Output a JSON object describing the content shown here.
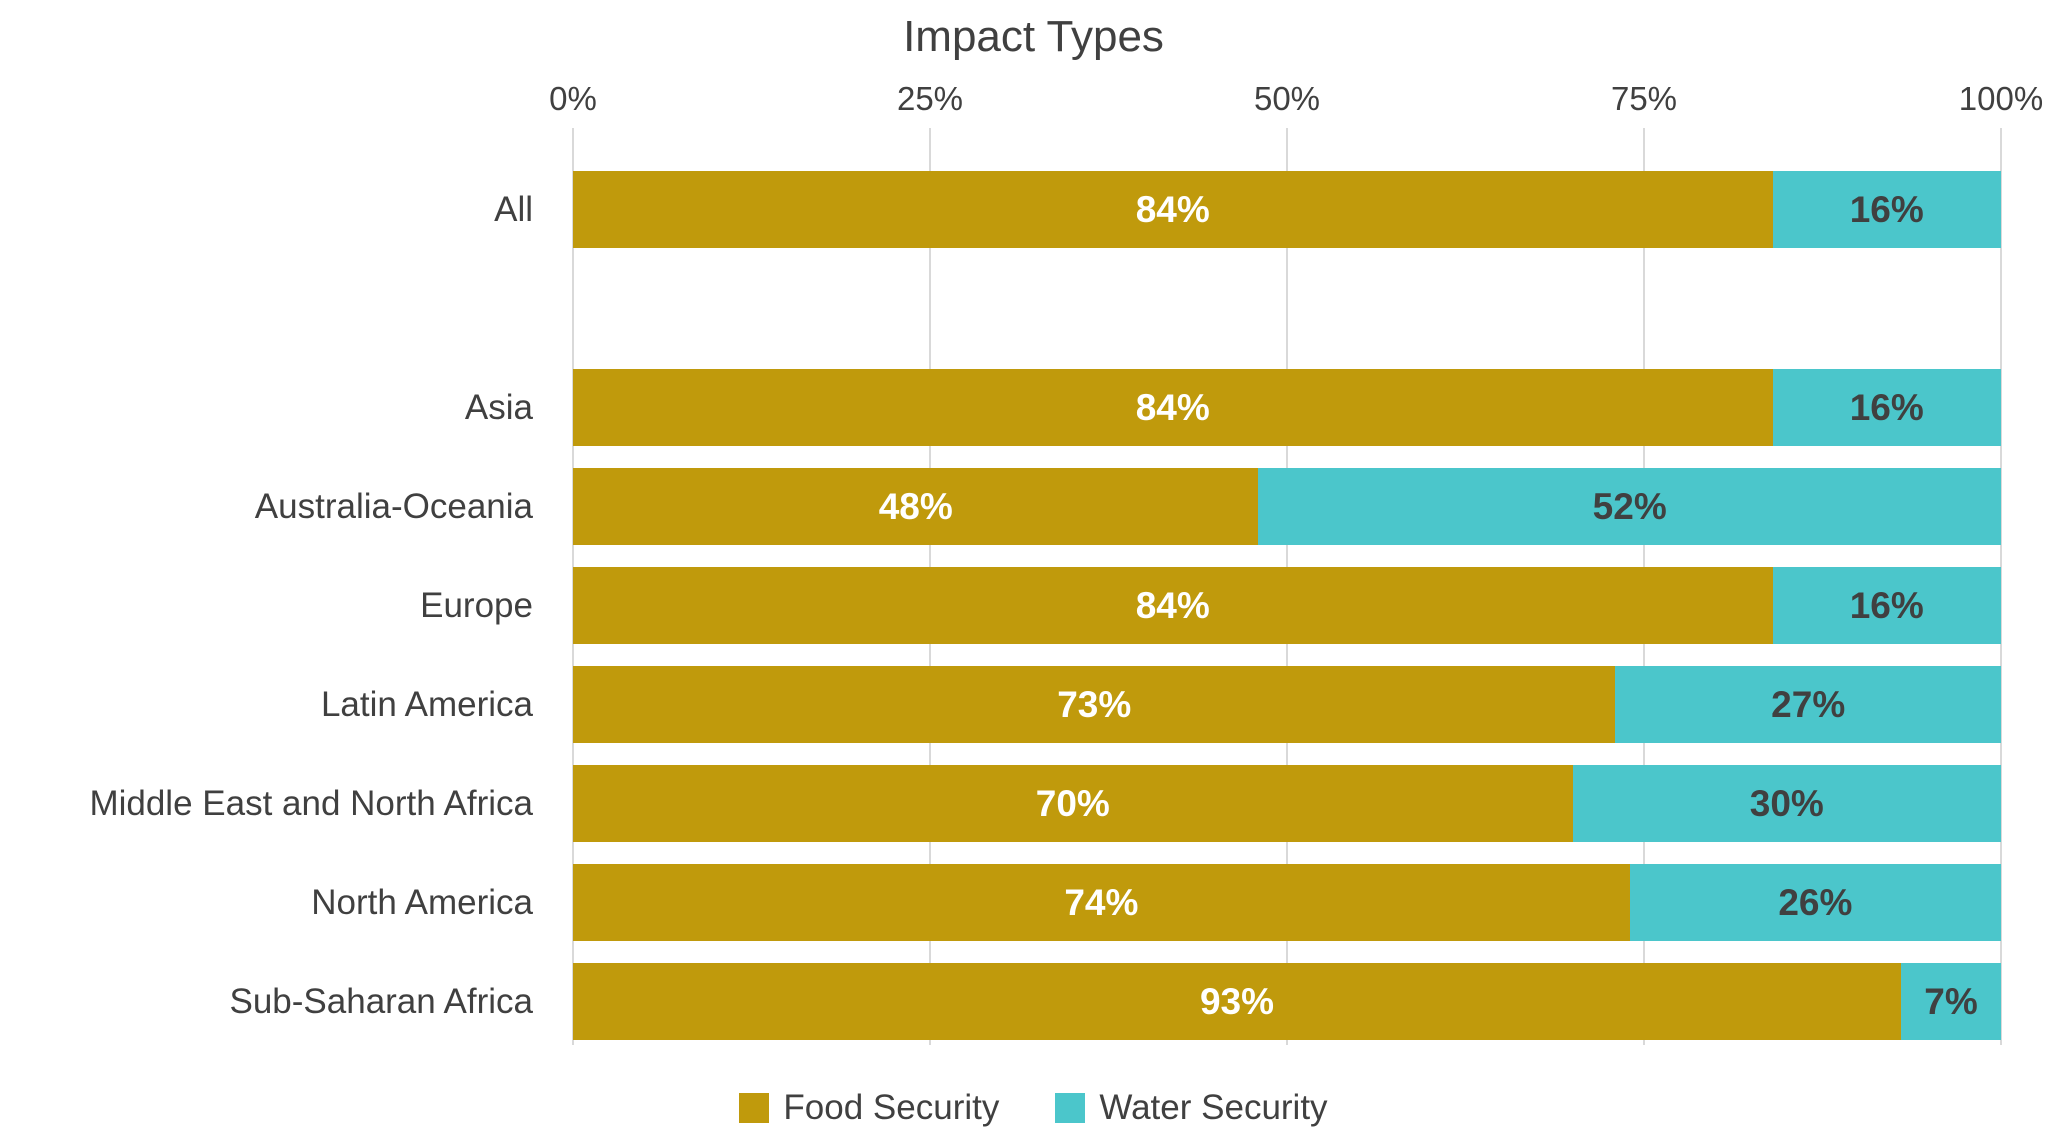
{
  "colors": {
    "food": "#C09A0C",
    "water": "#4BC6CB",
    "grid": "#D9D9D9",
    "text": "#404040",
    "label_on_food": "#FFFFFF",
    "label_on_water": "#404040"
  },
  "axis": {
    "ticks": [
      "0%",
      "25%",
      "50%",
      "75%",
      "100%"
    ],
    "tick_values": [
      0,
      25,
      50,
      75,
      100
    ]
  },
  "legend": [
    {
      "label": "Food Security",
      "color": "#C09A0C"
    },
    {
      "label": "Water Security",
      "color": "#4BC6CB"
    }
  ],
  "chart_data": {
    "type": "bar",
    "orientation": "horizontal",
    "stacked": true,
    "title": "Impact Types",
    "categories": [
      "All",
      "",
      "Asia",
      "Australia-Oceania",
      "Europe",
      "Latin America",
      "Middle East and North Africa",
      "North America",
      "Sub-Saharan Africa"
    ],
    "series": [
      {
        "name": "Food Security",
        "values": [
          84,
          null,
          84,
          48,
          84,
          73,
          70,
          74,
          93
        ]
      },
      {
        "name": "Water Security",
        "values": [
          16,
          null,
          16,
          52,
          16,
          27,
          30,
          26,
          7
        ]
      }
    ],
    "xlabel": "",
    "ylabel": "",
    "xlim": [
      0,
      100
    ],
    "grid": true,
    "legend_position": "bottom"
  }
}
